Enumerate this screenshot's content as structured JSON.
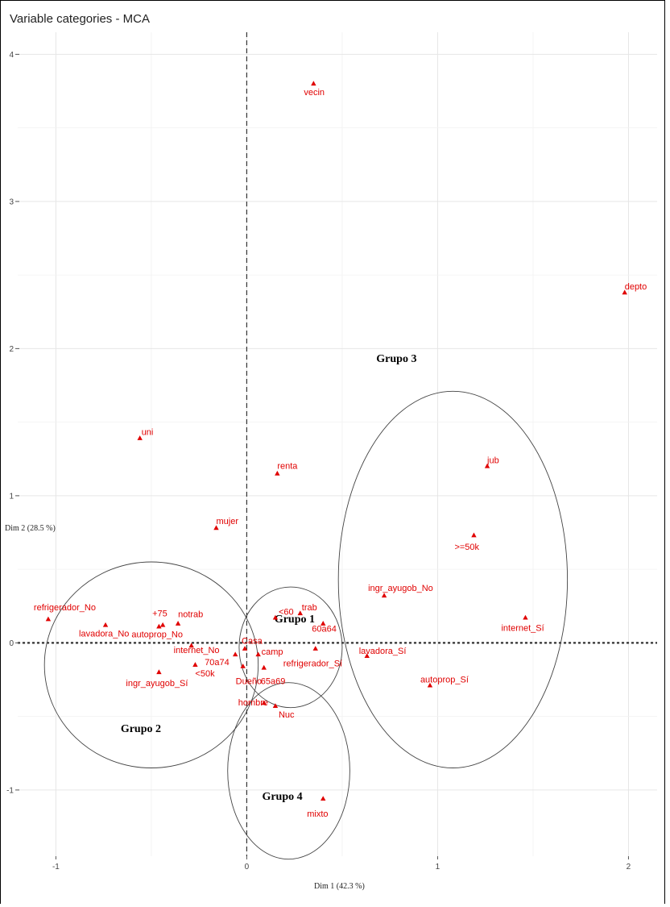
{
  "chart_data": {
    "type": "scatter",
    "title": "Variable categories - MCA",
    "xlabel": "Dim 1 (42.3 %)",
    "ylabel": "Dim 2 (28.5 %)",
    "xlim": [
      -1.2,
      2.15
    ],
    "ylim": [
      -1.45,
      4.15
    ],
    "x_ticks": [
      -1,
      0,
      1,
      2
    ],
    "y_ticks": [
      -1,
      0,
      1,
      2,
      3,
      4
    ],
    "grid": true,
    "points": [
      {
        "label": "vecin",
        "x": 0.35,
        "y": 3.8
      },
      {
        "label": "depto",
        "x": 1.98,
        "y": 2.38
      },
      {
        "label": "uni",
        "x": -0.56,
        "y": 1.39
      },
      {
        "label": "renta",
        "x": 0.16,
        "y": 1.15
      },
      {
        "label": "jub",
        "x": 1.26,
        "y": 1.2
      },
      {
        "label": ">=50k",
        "x": 1.19,
        "y": 0.73
      },
      {
        "label": "mujer",
        "x": -0.16,
        "y": 0.78
      },
      {
        "label": "ingr_ayugob_No",
        "x": 0.72,
        "y": 0.32
      },
      {
        "label": "internet_Sí",
        "x": 1.46,
        "y": 0.17
      },
      {
        "label": "refrigerador_No",
        "x": -1.04,
        "y": 0.16
      },
      {
        "label": "+75",
        "x": -0.44,
        "y": 0.12
      },
      {
        "label": "notrab",
        "x": -0.36,
        "y": 0.13
      },
      {
        "label": "lavadora_No",
        "x": -0.74,
        "y": 0.12
      },
      {
        "label": "autoprop_No",
        "x": -0.46,
        "y": 0.11
      },
      {
        "label": "internet_No",
        "x": -0.29,
        "y": -0.02
      },
      {
        "label": "<60",
        "x": 0.15,
        "y": 0.17
      },
      {
        "label": "trab",
        "x": 0.28,
        "y": 0.2
      },
      {
        "label": "Casa",
        "x": -0.01,
        "y": -0.04
      },
      {
        "label": "60a64",
        "x": 0.4,
        "y": 0.13
      },
      {
        "label": "lavadora_Sí",
        "x": 0.63,
        "y": -0.09
      },
      {
        "label": "70a74",
        "x": -0.06,
        "y": -0.08
      },
      {
        "label": "camp",
        "x": 0.06,
        "y": -0.08
      },
      {
        "label": "refrigerador_Sí",
        "x": 0.36,
        "y": -0.04
      },
      {
        "label": "autoprop_Sí",
        "x": 0.96,
        "y": -0.29
      },
      {
        "label": "ingr_ayugob_Sí",
        "x": -0.46,
        "y": -0.2
      },
      {
        "label": "<50k",
        "x": -0.27,
        "y": -0.15
      },
      {
        "label": "Dueño",
        "x": -0.02,
        "y": -0.16
      },
      {
        "label": "65a69",
        "x": 0.09,
        "y": -0.17
      },
      {
        "label": "hombre",
        "x": 0.09,
        "y": -0.41
      },
      {
        "label": "Nuc",
        "x": 0.15,
        "y": -0.43
      },
      {
        "label": "mixto",
        "x": 0.4,
        "y": -1.06
      }
    ],
    "groups": [
      {
        "label": "Grupo 1",
        "cx": 0.23,
        "cy": -0.03,
        "rx": 0.27,
        "ry": 0.41
      },
      {
        "label": "Grupo 2",
        "cx": -0.5,
        "cy": -0.15,
        "rx": 0.56,
        "ry": 0.7
      },
      {
        "label": "Grupo 3",
        "cx": 1.08,
        "cy": 0.43,
        "rx": 0.6,
        "ry": 1.28
      },
      {
        "label": "Grupo 4",
        "cx": 0.22,
        "cy": -0.87,
        "rx": 0.32,
        "ry": 0.6
      }
    ]
  }
}
